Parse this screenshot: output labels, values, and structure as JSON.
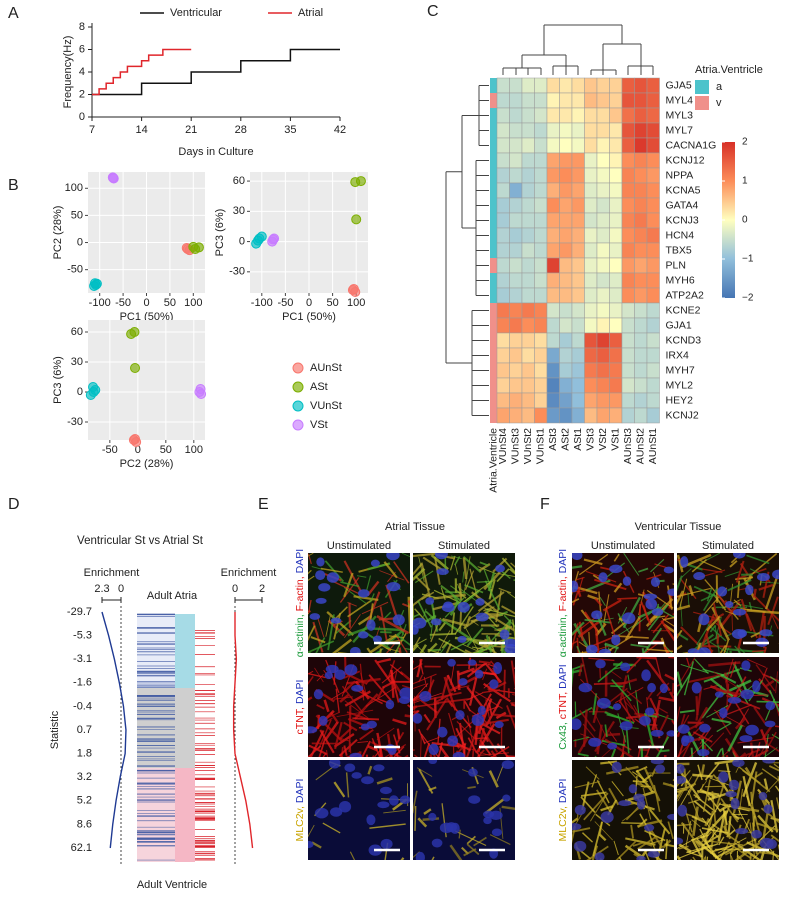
{
  "panel_labels": [
    "A",
    "B",
    "C",
    "D",
    "E",
    "F"
  ],
  "chart_data": [
    {
      "type": "line",
      "xlabel": "Days in Culture",
      "ylabel": "Frequency(Hz)",
      "xlim": [
        7,
        42
      ],
      "xticks": [
        7,
        14,
        21,
        28,
        35,
        42
      ],
      "ylim": [
        0,
        8
      ],
      "yticks": [
        0,
        2,
        4,
        6,
        8
      ],
      "series": [
        {
          "name": "Ventricular",
          "color": "#111111",
          "x": [
            7,
            14,
            14,
            21,
            21,
            28,
            28,
            35,
            35,
            42
          ],
          "values": [
            2,
            2,
            3,
            3,
            4,
            4,
            5,
            5,
            6,
            6
          ]
        },
        {
          "name": "Atrial",
          "color": "#e0262b",
          "x": [
            7,
            8,
            8,
            9,
            9,
            10,
            10,
            11,
            11,
            12,
            12,
            14,
            14,
            15,
            15,
            17,
            17,
            21
          ],
          "values": [
            2,
            2,
            2.5,
            2.5,
            3,
            3,
            3.5,
            3.5,
            4,
            4,
            4.5,
            4.5,
            5,
            5,
            5.5,
            5.5,
            6,
            6
          ]
        }
      ]
    },
    {
      "type": "scatter",
      "xlabel": "PC1 (50%)",
      "ylabel": "PC2 (28%)",
      "xlim": [
        -125,
        125
      ],
      "xticks": [
        -100,
        -50,
        0,
        50,
        100
      ],
      "ylim": [
        -93,
        130
      ],
      "yticks": [
        -50,
        0,
        50,
        100
      ],
      "series": [
        {
          "name": "AUnSt",
          "color": "#f8766d",
          "x": [
            88,
            92,
            86
          ],
          "values": [
            -12,
            -14,
            -10
          ]
        },
        {
          "name": "ASt",
          "color": "#7cae00",
          "x": [
            100,
            112,
            104
          ],
          "values": [
            -8,
            -9,
            -12
          ]
        },
        {
          "name": "VUnSt",
          "color": "#00bfc4",
          "x": [
            -110,
            -108,
            -112,
            -106
          ],
          "values": [
            -75,
            -78,
            -80,
            -76
          ]
        },
        {
          "name": "VSt",
          "color": "#c77cff",
          "x": [
            -72,
            -70,
            -71
          ],
          "values": [
            120,
            118,
            119
          ]
        }
      ]
    },
    {
      "type": "scatter",
      "xlabel": "PC1 (50%)",
      "ylabel": "PC3 (6%)",
      "xlim": [
        -125,
        125
      ],
      "xticks": [
        -100,
        -50,
        0,
        50,
        100
      ],
      "ylim": [
        -51,
        69
      ],
      "yticks": [
        -30,
        0,
        30,
        60
      ],
      "series": [
        {
          "color": "#f8766d",
          "x": [
            95,
            98,
            93
          ],
          "values": [
            -47,
            -50,
            -48
          ]
        },
        {
          "color": "#7cae00",
          "x": [
            98,
            110,
            100
          ],
          "values": [
            59,
            60,
            22
          ]
        },
        {
          "color": "#00bfc4",
          "x": [
            -105,
            -112,
            -100,
            -108
          ],
          "values": [
            3,
            -2,
            5,
            1
          ]
        },
        {
          "color": "#c77cff",
          "x": [
            -76,
            -78,
            -74
          ],
          "values": [
            2,
            0,
            3
          ]
        }
      ]
    },
    {
      "type": "scatter",
      "xlabel": "PC2 (28%)",
      "ylabel": "PC3 (6%)",
      "xlim": [
        -89,
        120
      ],
      "xticks": [
        -50,
        0,
        50,
        100
      ],
      "ylim": [
        -48,
        72
      ],
      "yticks": [
        -30,
        0,
        30,
        60
      ],
      "series": [
        {
          "color": "#f8766d",
          "x": [
            -5,
            -3,
            -7
          ],
          "values": [
            -47,
            -50,
            -48
          ]
        },
        {
          "color": "#7cae00",
          "x": [
            -12,
            -6,
            -5
          ],
          "values": [
            58,
            60,
            24
          ]
        },
        {
          "color": "#00bfc4",
          "x": [
            -80,
            -76,
            -84,
            -79
          ],
          "values": [
            5,
            2,
            -3,
            0
          ]
        },
        {
          "color": "#c77cff",
          "x": [
            112,
            110,
            113
          ],
          "values": [
            3,
            0,
            -2
          ]
        }
      ]
    },
    {
      "type": "heatmap",
      "rows": [
        "GJA5",
        "MYL4",
        "MYL3",
        "MYL7",
        "CACNA1G",
        "KCNJ12",
        "NPPA",
        "KCNA5",
        "GATA4",
        "KCNJ3",
        "HCN4",
        "TBX5",
        "PLN",
        "MYH6",
        "ATP2A2",
        "KCNE2",
        "GJA1",
        "KCND3",
        "IRX4",
        "MYH7",
        "MYL2",
        "HEY2",
        "KCNJ2"
      ],
      "columns": [
        "VUnSt4",
        "VUnSt3",
        "VUnSt2",
        "VUnSt1",
        "ASt3",
        "ASt2",
        "ASt1",
        "VSt3",
        "VSt2",
        "VSt1",
        "AUnSt3",
        "AUnSt2",
        "AUnSt1"
      ],
      "values": [
        [
          -0.5,
          -0.5,
          -0.3,
          -0.3,
          0.3,
          0.2,
          0.3,
          0.5,
          0.4,
          0.4,
          1.5,
          1.6,
          1.5
        ],
        [
          -0.6,
          -0.6,
          -0.5,
          -0.5,
          0.1,
          0.2,
          0.2,
          0.6,
          0.5,
          0.4,
          1.6,
          1.6,
          1.5
        ],
        [
          -0.5,
          -0.6,
          -0.5,
          -0.4,
          0.2,
          0.2,
          0.1,
          0.3,
          0.3,
          0.5,
          1.3,
          1.5,
          1.4
        ],
        [
          -0.4,
          -0.5,
          -0.5,
          -0.6,
          -0.2,
          -0.1,
          -0.2,
          0.3,
          0.3,
          0.2,
          1.6,
          1.8,
          1.7
        ],
        [
          -0.4,
          -0.4,
          -0.3,
          -0.5,
          -0.1,
          0,
          -0.1,
          0.3,
          0.1,
          0.2,
          1.5,
          1.9,
          1.7
        ],
        [
          -0.5,
          -0.4,
          -0.6,
          -0.6,
          0.8,
          0.9,
          0.9,
          -0.2,
          0,
          0.1,
          1,
          1.1,
          1
        ],
        [
          -0.7,
          -0.6,
          -0.7,
          -0.6,
          0.9,
          1,
          0.9,
          -0.2,
          -0.1,
          0,
          1.1,
          1,
          0.9
        ],
        [
          -0.6,
          -1.2,
          -0.7,
          -0.6,
          0.7,
          0.9,
          0.8,
          -0.3,
          -0.2,
          -0.1,
          1.1,
          1.1,
          1
        ],
        [
          -0.8,
          -0.7,
          -0.6,
          -0.5,
          1,
          0.8,
          0.9,
          -0.3,
          -0.4,
          -0.2,
          1,
          1.1,
          1
        ],
        [
          -0.8,
          -0.6,
          -0.6,
          -0.6,
          0.8,
          0.8,
          0.8,
          -0.4,
          -0.3,
          -0.2,
          1.1,
          1.2,
          1
        ],
        [
          -0.7,
          -0.8,
          -0.7,
          -0.6,
          0.7,
          0.8,
          0.7,
          -0.2,
          -0.3,
          -0.1,
          1,
          1.1,
          1.2
        ],
        [
          -0.7,
          -0.7,
          -0.5,
          -0.6,
          0.8,
          0.9,
          0.7,
          -0.3,
          -0.1,
          -0.2,
          1.1,
          1,
          1
        ],
        [
          -0.6,
          -0.5,
          -0.6,
          -0.5,
          1.8,
          0.6,
          0.5,
          -0.2,
          -0.1,
          0,
          0.9,
          0.8,
          0.9
        ],
        [
          -0.7,
          -0.6,
          -0.6,
          -0.5,
          0.7,
          0.6,
          0.5,
          -0.3,
          -0.4,
          -0.3,
          1.1,
          1,
          1
        ],
        [
          -0.8,
          -0.7,
          -0.6,
          -0.6,
          0.6,
          0.6,
          0.5,
          -0.3,
          -0.2,
          -0.3,
          1,
          0.9,
          1
        ],
        [
          1.2,
          1.1,
          1.2,
          1.1,
          -0.4,
          -0.5,
          -0.4,
          -0.2,
          -0.1,
          -0.2,
          -0.4,
          -0.5,
          -0.6
        ],
        [
          1.1,
          1.2,
          1,
          1.1,
          -0.6,
          -0.4,
          -0.5,
          -0.1,
          0.1,
          0,
          -0.5,
          -0.6,
          -0.7
        ],
        [
          0.3,
          0.4,
          0.4,
          0.3,
          -0.6,
          -0.8,
          -0.6,
          1.6,
          1.8,
          1.5,
          -0.5,
          -0.6,
          -0.5
        ],
        [
          0.4,
          0.5,
          0.3,
          0.4,
          -1.3,
          -0.7,
          -0.8,
          1.4,
          1.5,
          1.3,
          -0.5,
          -0.6,
          -0.6
        ],
        [
          0.5,
          0.4,
          0.5,
          0.3,
          -1.6,
          -0.8,
          -0.9,
          1.2,
          1.3,
          1.2,
          -0.5,
          -0.6,
          -0.5
        ],
        [
          0.4,
          0.5,
          0.5,
          0.4,
          -1.8,
          -1.2,
          -1,
          1,
          1.1,
          1.2,
          -0.4,
          -0.5,
          -0.6
        ],
        [
          0.6,
          0.7,
          0.6,
          0.4,
          -1.7,
          -1.4,
          -1,
          0.8,
          0.9,
          0.9,
          -0.6,
          -0.7,
          -0.6
        ],
        [
          0.8,
          0.7,
          0.6,
          1,
          -1.5,
          -1.6,
          -1.2,
          0.6,
          0.8,
          0.7,
          -0.7,
          -0.6,
          -0.8
        ]
      ],
      "zlim": [
        -2,
        2
      ],
      "zticks": [
        2,
        1,
        0,
        {
          "value": -1,
          "label": "−1"
        },
        {
          "value": -2,
          "label": "−2"
        }
      ],
      "colormap": [
        "#4575b4",
        "#91bfdb",
        "#ffffbf",
        "#fc8d59",
        "#d73027"
      ],
      "annotation": {
        "title": "Atria.Ventricle",
        "levels": [
          {
            "name": "a",
            "color": "#4dc3cb"
          },
          {
            "name": "v",
            "color": "#f0908a"
          }
        ],
        "values": [
          "a",
          "v",
          "a",
          "a",
          "a",
          "a",
          "a",
          "a",
          "a",
          "a",
          "a",
          "a",
          "v",
          "a",
          "a",
          "v",
          "v",
          "v",
          "v",
          "v",
          "v",
          "v",
          "v"
        ]
      }
    },
    {
      "type": "barcode",
      "title": "Ventricular St vs Atrial St",
      "ylabel": "Statistic",
      "top_label": "Adult Atria",
      "bottom_label": "Adult Ventricle",
      "categories": [
        -29.7,
        -5.3,
        -3.1,
        -1.6,
        -0.4,
        0.7,
        1.8,
        3.2,
        5.2,
        8.6,
        62.1
      ],
      "enrichment": [
        {
          "label": "Enrichment",
          "xlim": [
            2.3,
            0
          ],
          "xticks": [
            2.3,
            0
          ],
          "color": "#1f3a93",
          "values": [
            2.3,
            1.5,
            0.8,
            0.2,
            -0.3,
            -0.6,
            -0.5,
            0.1,
            0.6,
            1,
            1.3
          ]
        },
        {
          "label": "Enrichment",
          "xlim": [
            0,
            2
          ],
          "xticks": [
            0,
            2
          ],
          "color": "#e0262b",
          "values": [
            0,
            0,
            0.1,
            0,
            -0.1,
            -0.1,
            0,
            0.4,
            0.8,
            1.1,
            1.3
          ]
        }
      ]
    }
  ],
  "images": [
    {
      "title": "Atrial Tissue",
      "columns": [
        "Unstimulated",
        "Stimulated"
      ],
      "rows": [
        [
          {
            "text": "α-actinin,",
            "color": "#1a9a3a"
          },
          {
            "text": "F-actin,",
            "color": "#e01010"
          },
          {
            "text": "DAPI",
            "color": "#2233bb"
          }
        ],
        [
          {
            "text": "cTNT,",
            "color": "#e01010"
          },
          {
            "text": "DAPI",
            "color": "#2233bb"
          }
        ],
        [
          {
            "text": "MLC2v,",
            "color": "#c9a400"
          },
          {
            "text": "DAPI",
            "color": "#2233bb"
          }
        ]
      ]
    },
    {
      "title": "Ventricular Tissue",
      "columns": [
        "Unstimulated",
        "Stimulated"
      ],
      "rows": [
        [
          {
            "text": "α-actinin,",
            "color": "#1a9a3a"
          },
          {
            "text": "F-actin,",
            "color": "#e01010"
          },
          {
            "text": "DAPI",
            "color": "#2233bb"
          }
        ],
        [
          {
            "text": "Cx43,",
            "color": "#1a9a3a"
          },
          {
            "text": "cTNT,",
            "color": "#e01010"
          },
          {
            "text": "DAPI",
            "color": "#2233bb"
          }
        ],
        [
          {
            "text": "MLC2v,",
            "color": "#c9a400"
          },
          {
            "text": "DAPI",
            "color": "#2233bb"
          }
        ]
      ]
    }
  ]
}
